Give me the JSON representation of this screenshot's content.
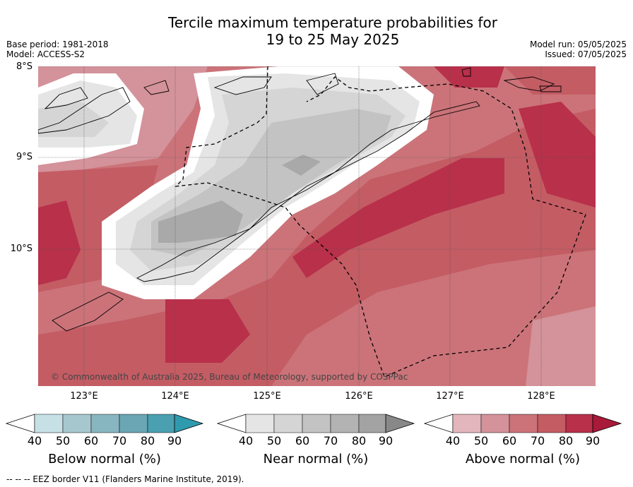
{
  "title_line1": "Tercile maximum temperature probabilities for",
  "title_line2": "19 to 25 May 2025",
  "meta_left": [
    "Base period: 1981-2018",
    "Model: ACCESS-S2"
  ],
  "meta_right": [
    "Model run: 05/05/2025",
    "Issued: 07/05/2025"
  ],
  "lat_labels": [
    "8°S",
    "9°S",
    "10°S"
  ],
  "lon_labels": [
    "123°E",
    "124°E",
    "125°E",
    "126°E",
    "127°E",
    "128°E"
  ],
  "copyright": "© Commonwealth of Australia 2025, Bureau of Meteorology, supported by COSPPac",
  "colorbars": [
    {
      "label": "Below normal (%)",
      "ticks": [
        "40",
        "50",
        "60",
        "70",
        "80",
        "90"
      ],
      "colors": [
        "#c6e0e6",
        "#a6c7cd",
        "#88b6c0",
        "#6aa6b3",
        "#4aa0b1",
        "#2f9aae"
      ]
    },
    {
      "label": "Near normal (%)",
      "ticks": [
        "40",
        "50",
        "60",
        "70",
        "80",
        "90"
      ],
      "colors": [
        "#e5e5e5",
        "#d5d5d5",
        "#c3c3c3",
        "#b3b3b3",
        "#a3a3a3",
        "#888888"
      ]
    },
    {
      "label": "Above normal (%)",
      "ticks": [
        "40",
        "50",
        "60",
        "70",
        "80",
        "90"
      ],
      "colors": [
        "#e2b6bc",
        "#d4929a",
        "#cb7379",
        "#c45c64",
        "#b8304a",
        "#a8193a"
      ]
    }
  ],
  "footer": "--  --  -- EEZ border V11 (Flanders Marine Institute, 2019)."
}
